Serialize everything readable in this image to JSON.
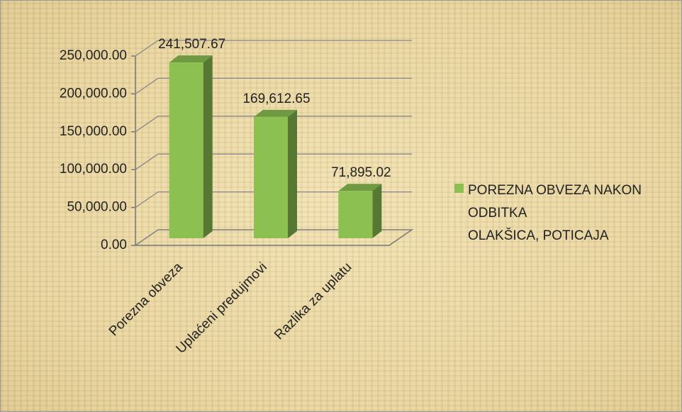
{
  "chart_data": {
    "type": "bar3d",
    "categories": [
      "Porezna obveza",
      "Uplaćeni predujmovi",
      "Razlika za uplatu"
    ],
    "series": [
      {
        "name": "POREZNA OBVEZA NAKON ODBITKA\nOLAKŠICA, POTICAJA",
        "color": "#8cc152",
        "values": [
          241507.67,
          169612.65,
          71895.02
        ],
        "value_labels": [
          "241,507.67",
          "169,612.65",
          "71,895.02"
        ]
      }
    ],
    "ylim": [
      0,
      250000
    ],
    "yticks": [
      {
        "value": 0,
        "label": "0.00"
      },
      {
        "value": 50000,
        "label": "50,000.00"
      },
      {
        "value": 100000,
        "label": "100,000.00"
      },
      {
        "value": 150000,
        "label": "150,000.00"
      },
      {
        "value": 200000,
        "label": "200,000.00"
      },
      {
        "value": 250000,
        "label": "250,000.00"
      }
    ],
    "grid": true,
    "legend": "right"
  }
}
